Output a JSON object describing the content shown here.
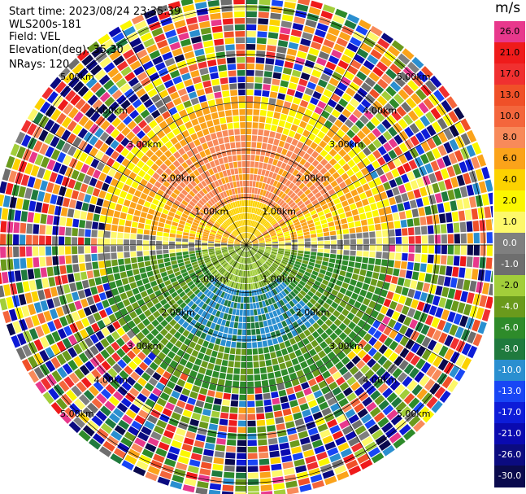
{
  "info": {
    "start_time": "Start time: 2023/08/24 23:35:39",
    "instrument": "WLS200s-181",
    "field": "Field: VEL",
    "elevation": "Elevation(deg): 35.30",
    "nrays": "NRays: 120"
  },
  "colorbar": {
    "unit": "m/s",
    "levels": [
      {
        "label": "26.0",
        "color": "#e8388c"
      },
      {
        "label": "21.0",
        "color": "#ef1b1b"
      },
      {
        "label": "17.0",
        "color": "#f03030"
      },
      {
        "label": "13.0",
        "color": "#f05028"
      },
      {
        "label": "10.0",
        "color": "#f4663c"
      },
      {
        "label": "8.0",
        "color": "#f88a5a"
      },
      {
        "label": "6.0",
        "color": "#fba31a"
      },
      {
        "label": "4.0",
        "color": "#fcd200"
      },
      {
        "label": "2.0",
        "color": "#fbf700"
      },
      {
        "label": "1.0",
        "color": "#fdf86a"
      },
      {
        "label": "0.0",
        "color": "#7f7f7f"
      },
      {
        "label": "-1.0",
        "color": "#6e6e6e"
      },
      {
        "label": "-2.0",
        "color": "#a2ce3a"
      },
      {
        "label": "-4.0",
        "color": "#6a9a1c"
      },
      {
        "label": "-6.0",
        "color": "#2e8b2a"
      },
      {
        "label": "-8.0",
        "color": "#1f7a3d"
      },
      {
        "label": "-10.0",
        "color": "#2a8fd0"
      },
      {
        "label": "-13.0",
        "color": "#1846f5"
      },
      {
        "label": "-17.0",
        "color": "#0d1cd8"
      },
      {
        "label": "-21.0",
        "color": "#0a0ab0"
      },
      {
        "label": "-26.0",
        "color": "#0b0b80"
      },
      {
        "label": "-30.0",
        "color": "#0a0a4d"
      }
    ]
  },
  "range_rings": [
    "1.00km",
    "2.00km",
    "3.00km",
    "4.00km",
    "5.00km"
  ]
}
